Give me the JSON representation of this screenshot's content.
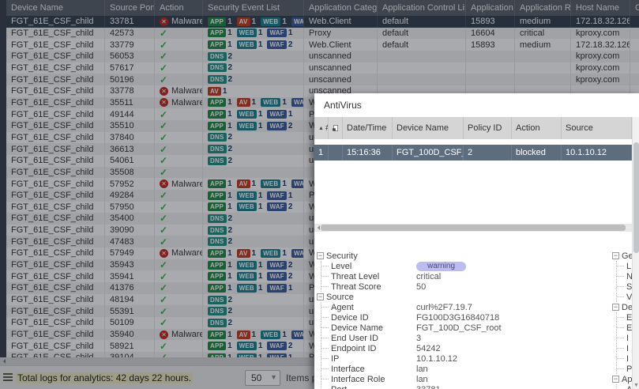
{
  "main_table": {
    "columns": [
      {
        "label": "Device Name"
      },
      {
        "label": "Source Port"
      },
      {
        "label": "Action"
      },
      {
        "label": "Security Event List"
      },
      {
        "label": "Application Category",
        "help": true
      },
      {
        "label": "Application Control List"
      },
      {
        "label": "Application ID"
      },
      {
        "label": "Application Risk"
      },
      {
        "label": "Host Name"
      },
      {
        "label": "C"
      }
    ],
    "rows": [
      {
        "device": "FGT_61E_CSF_child",
        "port": "33781",
        "action": "malware",
        "events": [
          {
            "type": "APP",
            "count": "1"
          },
          {
            "type": "AV",
            "count": "1"
          },
          {
            "type": "WEB",
            "count": "1"
          },
          {
            "type": "WAF",
            "count": "2"
          }
        ],
        "category": "Web.Client",
        "control": "default",
        "app_id": "15893",
        "risk": "medium",
        "host": "172.18.32.126",
        "selected": true
      },
      {
        "device": "FGT_61E_CSF_child",
        "port": "42573",
        "action": "ok",
        "events": [
          {
            "type": "APP",
            "count": "1"
          },
          {
            "type": "WEB",
            "count": "1"
          },
          {
            "type": "WAF",
            "count": "1"
          }
        ],
        "category": "Proxy",
        "control": "default",
        "app_id": "16604",
        "risk": "critical",
        "host": "kproxy.com"
      },
      {
        "device": "FGT_61E_CSF_child",
        "port": "33779",
        "action": "ok",
        "events": [
          {
            "type": "APP",
            "count": "1"
          },
          {
            "type": "WEB",
            "count": "1"
          },
          {
            "type": "WAF",
            "count": "2"
          }
        ],
        "category": "Web.Client",
        "control": "default",
        "app_id": "15893",
        "risk": "medium",
        "host": "172.18.32.126"
      },
      {
        "device": "FGT_61E_CSF_child",
        "port": "56053",
        "action": "ok",
        "events": [
          {
            "type": "DNS",
            "count": "2"
          }
        ],
        "category": "unscanned",
        "control": "",
        "app_id": "",
        "risk": "",
        "host": "kproxy.com"
      },
      {
        "device": "FGT_61E_CSF_child",
        "port": "57617",
        "action": "ok",
        "events": [
          {
            "type": "DNS",
            "count": "2"
          }
        ],
        "category": "unscanned",
        "control": "",
        "app_id": "",
        "risk": "",
        "host": "kproxy.com"
      },
      {
        "device": "FGT_61E_CSF_child",
        "port": "50196",
        "action": "ok",
        "events": [
          {
            "type": "DNS",
            "count": "2"
          }
        ],
        "category": "unscanned",
        "control": "",
        "app_id": "",
        "risk": "",
        "host": "kproxy.com"
      },
      {
        "device": "FGT_61E_CSF_child",
        "port": "33778",
        "action": "malware",
        "events": [
          {
            "type": "AV",
            "count": "1"
          }
        ],
        "category": "unscanned",
        "control": "",
        "app_id": "",
        "risk": "",
        "host": ""
      },
      {
        "device": "FGT_61E_CSF_child",
        "port": "35511",
        "action": "malware",
        "events": [
          {
            "type": "APP",
            "count": "1"
          },
          {
            "type": "AV",
            "count": "1"
          },
          {
            "type": "WEB",
            "count": "1"
          },
          {
            "type": "WAF",
            "count": "2"
          }
        ],
        "category": "Web.Client",
        "control": "",
        "app_id": "",
        "risk": "",
        "host": ""
      },
      {
        "device": "FGT_61E_CSF_child",
        "port": "49144",
        "action": "ok",
        "events": [
          {
            "type": "APP",
            "count": "1"
          },
          {
            "type": "WEB",
            "count": "1"
          },
          {
            "type": "WAF",
            "count": "1"
          }
        ],
        "category": "Proxy",
        "control": "",
        "app_id": "",
        "risk": "",
        "host": ""
      },
      {
        "device": "FGT_61E_CSF_child",
        "port": "35510",
        "action": "ok",
        "events": [
          {
            "type": "APP",
            "count": "1"
          },
          {
            "type": "WEB",
            "count": "1"
          },
          {
            "type": "WAF",
            "count": "2"
          }
        ],
        "category": "Web.Client",
        "control": "",
        "app_id": "",
        "risk": "",
        "host": ""
      },
      {
        "device": "FGT_61E_CSF_child",
        "port": "37840",
        "action": "ok",
        "events": [
          {
            "type": "DNS",
            "count": "2"
          }
        ],
        "category": "unscanned",
        "control": "",
        "app_id": "",
        "risk": "",
        "host": ""
      },
      {
        "device": "FGT_61E_CSF_child",
        "port": "36613",
        "action": "ok",
        "events": [
          {
            "type": "DNS",
            "count": "2"
          }
        ],
        "category": "unscanned",
        "control": "",
        "app_id": "",
        "risk": "",
        "host": ""
      },
      {
        "device": "FGT_61E_CSF_child",
        "port": "54061",
        "action": "ok",
        "events": [
          {
            "type": "DNS",
            "count": "2"
          }
        ],
        "category": "unscanned",
        "control": "",
        "app_id": "",
        "risk": "",
        "host": ""
      },
      {
        "device": "FGT_61E_CSF_child",
        "port": "35508",
        "action": "ok",
        "events": [],
        "category": "",
        "control": "",
        "app_id": "",
        "risk": "",
        "host": ""
      },
      {
        "device": "FGT_61E_CSF_child",
        "port": "57952",
        "action": "malware",
        "events": [
          {
            "type": "APP",
            "count": "1"
          },
          {
            "type": "AV",
            "count": "1"
          },
          {
            "type": "WEB",
            "count": "1"
          },
          {
            "type": "WAF",
            "count": "2"
          }
        ],
        "category": "Web.Client",
        "control": "",
        "app_id": "",
        "risk": "",
        "host": ""
      },
      {
        "device": "FGT_61E_CSF_child",
        "port": "49284",
        "action": "ok",
        "events": [
          {
            "type": "APP",
            "count": "1"
          },
          {
            "type": "WEB",
            "count": "1"
          },
          {
            "type": "WAF",
            "count": "1"
          }
        ],
        "category": "Proxy",
        "control": "",
        "app_id": "",
        "risk": "",
        "host": ""
      },
      {
        "device": "FGT_61E_CSF_child",
        "port": "57950",
        "action": "ok",
        "events": [
          {
            "type": "APP",
            "count": "1"
          },
          {
            "type": "WEB",
            "count": "1"
          },
          {
            "type": "WAF",
            "count": "2"
          }
        ],
        "category": "Web.Client",
        "control": "",
        "app_id": "",
        "risk": "",
        "host": ""
      },
      {
        "device": "FGT_61E_CSF_child",
        "port": "35400",
        "action": "ok",
        "events": [
          {
            "type": "DNS",
            "count": "2"
          }
        ],
        "category": "unscanned",
        "control": "",
        "app_id": "",
        "risk": "",
        "host": ""
      },
      {
        "device": "FGT_61E_CSF_child",
        "port": "39090",
        "action": "ok",
        "events": [
          {
            "type": "DNS",
            "count": "2"
          }
        ],
        "category": "unscanned",
        "control": "",
        "app_id": "",
        "risk": "",
        "host": ""
      },
      {
        "device": "FGT_61E_CSF_child",
        "port": "47483",
        "action": "ok",
        "events": [
          {
            "type": "DNS",
            "count": "2"
          }
        ],
        "category": "unscanned",
        "control": "",
        "app_id": "",
        "risk": "",
        "host": ""
      },
      {
        "device": "FGT_61E_CSF_child",
        "port": "57949",
        "action": "malware",
        "events": [
          {
            "type": "APP",
            "count": "1"
          },
          {
            "type": "AV",
            "count": "1"
          },
          {
            "type": "WEB",
            "count": "1"
          },
          {
            "type": "WAF",
            "count": "1"
          }
        ],
        "category": "Web.Client",
        "control": "",
        "app_id": "",
        "risk": "",
        "host": ""
      },
      {
        "device": "FGT_61E_CSF_child",
        "port": "35943",
        "action": "ok",
        "events": [
          {
            "type": "APP",
            "count": "1"
          },
          {
            "type": "WEB",
            "count": "1"
          },
          {
            "type": "WAF",
            "count": "2"
          }
        ],
        "category": "Web.Client",
        "control": "",
        "app_id": "",
        "risk": "",
        "host": ""
      },
      {
        "device": "FGT_61E_CSF_child",
        "port": "35941",
        "action": "ok",
        "events": [
          {
            "type": "APP",
            "count": "1"
          },
          {
            "type": "WEB",
            "count": "1"
          },
          {
            "type": "WAF",
            "count": "2"
          }
        ],
        "category": "Web.Client",
        "control": "",
        "app_id": "",
        "risk": "",
        "host": ""
      },
      {
        "device": "FGT_61E_CSF_child",
        "port": "41376",
        "action": "ok",
        "events": [
          {
            "type": "APP",
            "count": "1"
          },
          {
            "type": "WEB",
            "count": "1"
          },
          {
            "type": "WAF",
            "count": "1"
          }
        ],
        "category": "Proxy",
        "control": "",
        "app_id": "",
        "risk": "",
        "host": ""
      },
      {
        "device": "FGT_61E_CSF_child",
        "port": "48194",
        "action": "ok",
        "events": [
          {
            "type": "DNS",
            "count": "2"
          }
        ],
        "category": "unscanned",
        "control": "",
        "app_id": "",
        "risk": "",
        "host": ""
      },
      {
        "device": "FGT_61E_CSF_child",
        "port": "55391",
        "action": "ok",
        "events": [
          {
            "type": "DNS",
            "count": "2"
          }
        ],
        "category": "unscanned",
        "control": "",
        "app_id": "",
        "risk": "",
        "host": ""
      },
      {
        "device": "FGT_61E_CSF_child",
        "port": "50109",
        "action": "ok",
        "events": [
          {
            "type": "DNS",
            "count": "2"
          }
        ],
        "category": "unscanned",
        "control": "",
        "app_id": "",
        "risk": "",
        "host": ""
      },
      {
        "device": "FGT_61E_CSF_child",
        "port": "35940",
        "action": "malware",
        "events": [
          {
            "type": "APP",
            "count": "1"
          },
          {
            "type": "AV",
            "count": "1"
          },
          {
            "type": "WEB",
            "count": "1"
          },
          {
            "type": "WAF",
            "count": "1"
          }
        ],
        "category": "Web.Client",
        "control": "",
        "app_id": "",
        "risk": "",
        "host": ""
      },
      {
        "device": "FGT_61E_CSF_child",
        "port": "58921",
        "action": "ok",
        "events": [
          {
            "type": "APP",
            "count": "1"
          },
          {
            "type": "WEB",
            "count": "1"
          },
          {
            "type": "WAF",
            "count": "2"
          }
        ],
        "category": "Web.Client",
        "control": "",
        "app_id": "",
        "risk": "",
        "host": ""
      },
      {
        "device": "FGT_61E_CSF_child",
        "port": "39104",
        "action": "ok",
        "events": [
          {
            "type": "APP",
            "count": "1"
          },
          {
            "type": "WEB",
            "count": "1"
          },
          {
            "type": "WAF",
            "count": "1"
          }
        ],
        "category": "Proxy",
        "control": "",
        "app_id": "",
        "risk": "",
        "host": ""
      }
    ],
    "action_malware_label": "Malware"
  },
  "footer": {
    "total_text": "Total logs for analytics: 42 days 22 hours.",
    "page_size": "50",
    "items_label": "Items pe"
  },
  "dialog": {
    "title": "AntiVirus",
    "table": {
      "columns": [
        "#",
        "",
        "Date/Time",
        "Device Name",
        "Policy ID",
        "Action",
        "Source"
      ],
      "row": {
        "num": "1",
        "payload": "",
        "datetime": "15:16:36",
        "device": "FGT_100D_CSF_root",
        "policy_id": "2",
        "action": "blocked",
        "source": "10.1.10.12"
      }
    },
    "details_left": [
      {
        "section": "Security",
        "items": [
          {
            "label": "Level",
            "value": "warning",
            "badge": true
          },
          {
            "label": "Threat Level",
            "value": "critical"
          },
          {
            "label": "Threat Score",
            "value": "50"
          }
        ]
      },
      {
        "section": "Source",
        "items": [
          {
            "label": "Agent",
            "value": "curl%2F7.19.7"
          },
          {
            "label": "Device ID",
            "value": "FG100D3G16840718"
          },
          {
            "label": "Device Name",
            "value": "FGT_100D_CSF_root"
          },
          {
            "label": "End User ID",
            "value": "3"
          },
          {
            "label": "Endpoint ID",
            "value": "54242"
          },
          {
            "label": "IP",
            "value": "10.1.10.12"
          },
          {
            "label": "Interface",
            "value": "lan"
          },
          {
            "label": "Interface Role",
            "value": "lan"
          },
          {
            "label": "Port",
            "value": "33781"
          }
        ]
      }
    ],
    "details_right": [
      {
        "section": "Gen",
        "items": [
          "L",
          "N",
          "S",
          "V"
        ]
      },
      {
        "section": "Des",
        "items": [
          "E",
          "E",
          "I",
          "I",
          "I",
          "P"
        ]
      },
      {
        "section": "App",
        "items": [
          "A"
        ]
      }
    ]
  },
  "colors": {
    "badge_app": "#1f8a44",
    "badge_av": "#c43a1f",
    "badge_web": "#1b7f8c",
    "badge_waf": "#3b5a9a",
    "badge_dns": "#1f9080",
    "selected_row": "#35404d",
    "dialog_selected_row": "#5e6d7d",
    "warning_badge": "#bdbcf0",
    "check_green": "#3fae49",
    "malware_red": "#c5281c"
  }
}
